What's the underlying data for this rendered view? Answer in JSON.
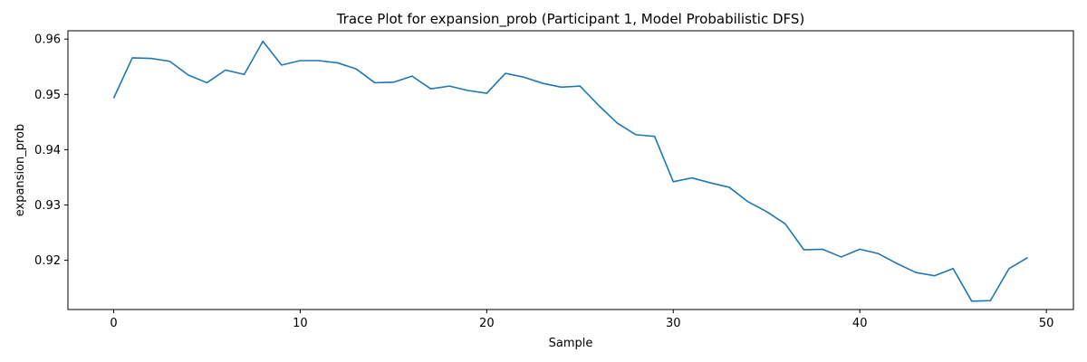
{
  "chart_data": {
    "type": "line",
    "title": "Trace Plot for expansion_prob (Participant 1, Model Probabilistic DFS)",
    "xlabel": "Sample",
    "ylabel": "expansion_prob",
    "xlim": [
      -2.45,
      51.45
    ],
    "ylim": [
      0.9111,
      0.9615
    ],
    "xticks": [
      0,
      10,
      20,
      30,
      40,
      50
    ],
    "yticks": [
      0.92,
      0.93,
      0.94,
      0.95,
      0.96
    ],
    "grid": false,
    "color": "#1f77b4",
    "series": [
      {
        "x": [
          0,
          1,
          2,
          3,
          4,
          5,
          6,
          7,
          8,
          9,
          10,
          11,
          12,
          13,
          14,
          15,
          16,
          17,
          18,
          19,
          20,
          21,
          22,
          23,
          24,
          25,
          26,
          27,
          28,
          29,
          30,
          31,
          32,
          33,
          34,
          35,
          36,
          37,
          38,
          39,
          40,
          41,
          42,
          43,
          44,
          45,
          46,
          47,
          48,
          49
        ],
        "values": [
          0.9493,
          0.9566,
          0.9565,
          0.956,
          0.9535,
          0.9521,
          0.9544,
          0.9536,
          0.9596,
          0.9553,
          0.9561,
          0.9561,
          0.9557,
          0.9546,
          0.9521,
          0.9522,
          0.9533,
          0.951,
          0.9515,
          0.9507,
          0.9502,
          0.9538,
          0.9531,
          0.952,
          0.9513,
          0.9515,
          0.948,
          0.9448,
          0.9427,
          0.9424,
          0.9342,
          0.9349,
          0.934,
          0.9332,
          0.9306,
          0.9288,
          0.9266,
          0.9219,
          0.922,
          0.9206,
          0.922,
          0.9212,
          0.9194,
          0.9178,
          0.9172,
          0.9185,
          0.9126,
          0.9127,
          0.9185,
          0.9205
        ]
      }
    ]
  }
}
